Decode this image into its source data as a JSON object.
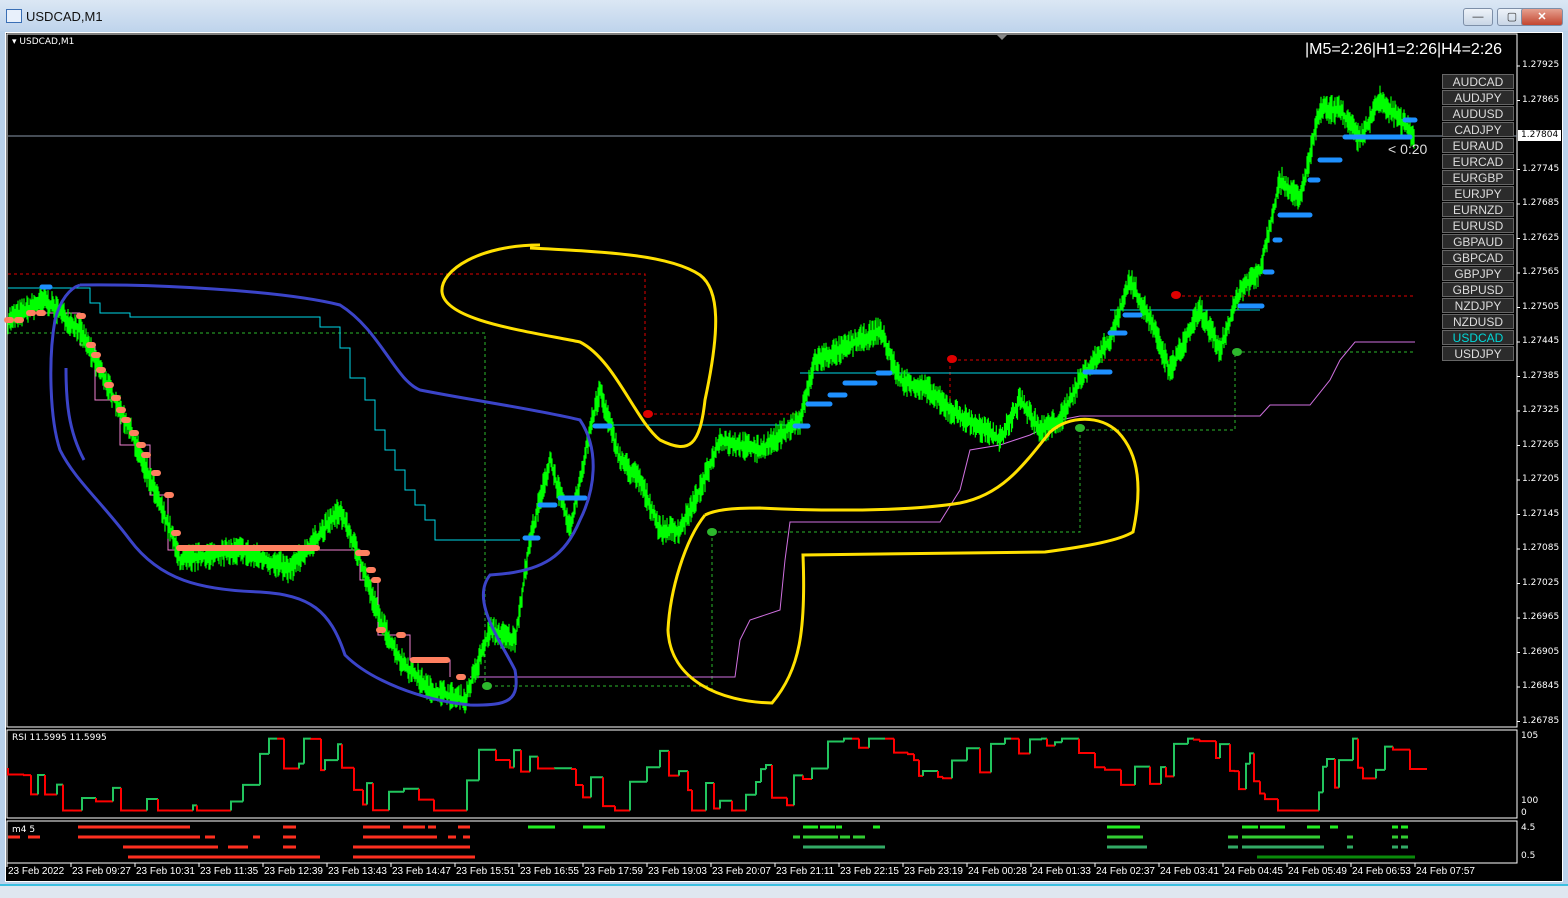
{
  "window": {
    "title": "USDCAD,M1",
    "buttons": {
      "minimize": "—",
      "restore": "▢",
      "close": "✕"
    }
  },
  "chart": {
    "label": "USDCAD,M1",
    "timer_text": "|M5=2:26|H1=2:26|H4=2:26",
    "bar_countdown": "< 0:20",
    "current_price": "1.27804"
  },
  "symbols": [
    "AUDCAD",
    "AUDJPY",
    "AUDUSD",
    "CADJPY",
    "EURAUD",
    "EURCAD",
    "EURGBP",
    "EURJPY",
    "EURNZD",
    "EURUSD",
    "GBPAUD",
    "GBPCAD",
    "GBPJPY",
    "GBPUSD",
    "NZDJPY",
    "NZDUSD",
    "USDCAD",
    "USDJPY"
  ],
  "active_symbol": "USDCAD",
  "rsi": {
    "label": "RSI 11.5995 11.5995",
    "axis": [
      "105",
      "0",
      "100"
    ]
  },
  "m4": {
    "label": "m4 5",
    "axis": [
      "4.5",
      "0.5"
    ]
  },
  "colors": {
    "price": "#00ff00",
    "bull": "#22c55e",
    "bear": "#ff0000",
    "active_symbol": "#00d8d8",
    "annotation_yellow": "#ffe000",
    "annotation_blue": "#3b44c8"
  },
  "chart_data": {
    "type": "line",
    "symbol": "USDCAD",
    "timeframe": "M1",
    "y_ticks": [
      "1.27925",
      "1.27865",
      "1.27745",
      "1.27685",
      "1.27625",
      "1.27565",
      "1.27505",
      "1.27445",
      "1.27385",
      "1.27325",
      "1.27265",
      "1.27205",
      "1.27145",
      "1.27085",
      "1.27025",
      "1.26965",
      "1.26905",
      "1.26845",
      "1.26785"
    ],
    "ylim": [
      1.26785,
      1.27925
    ],
    "x_ticks": [
      "23 Feb 2022",
      "23 Feb 09:27",
      "23 Feb 10:31",
      "23 Feb 11:35",
      "23 Feb 12:39",
      "23 Feb 13:43",
      "23 Feb 14:47",
      "23 Feb 15:51",
      "23 Feb 16:55",
      "23 Feb 17:59",
      "23 Feb 19:03",
      "23 Feb 20:07",
      "23 Feb 21:11",
      "23 Feb 22:15",
      "23 Feb 23:19",
      "24 Feb 00:28",
      "24 Feb 01:33",
      "24 Feb 02:37",
      "24 Feb 03:41",
      "24 Feb 04:45",
      "24 Feb 05:49",
      "24 Feb 06:53",
      "24 Feb 07:57"
    ],
    "points": [
      [
        "23 08:24",
        1.27483
      ],
      [
        "23 09:01",
        1.27518
      ],
      [
        "23 09:36",
        1.27466
      ],
      [
        "23 09:56",
        1.27396
      ],
      [
        "23 10:26",
        1.27292
      ],
      [
        "23 11:06",
        1.27118
      ],
      [
        "23 11:16",
        1.27066
      ],
      [
        "23 12:16",
        1.27083
      ],
      [
        "23 13:06",
        1.27049
      ],
      [
        "23 13:56",
        1.27153
      ],
      [
        "23 14:16",
        1.27066
      ],
      [
        "23 14:36",
        1.26962
      ],
      [
        "23 14:56",
        1.26892
      ],
      [
        "23 15:26",
        1.2684
      ],
      [
        "23 16:01",
        1.26822
      ],
      [
        "23 16:26",
        1.26944
      ],
      [
        "23 16:51",
        1.26927
      ],
      [
        "23 17:06",
        1.27101
      ],
      [
        "23 17:26",
        1.2724
      ],
      [
        "23 17:46",
        1.27118
      ],
      [
        "23 18:06",
        1.27292
      ],
      [
        "23 18:16",
        1.27362
      ],
      [
        "23 18:36",
        1.2724
      ],
      [
        "23 18:56",
        1.27205
      ],
      [
        "23 19:16",
        1.27118
      ],
      [
        "23 19:36",
        1.27118
      ],
      [
        "23 19:56",
        1.27188
      ],
      [
        "23 20:16",
        1.27275
      ],
      [
        "23 20:56",
        1.27257
      ],
      [
        "23 21:36",
        1.27309
      ],
      [
        "23 21:51",
        1.27414
      ],
      [
        "23 22:16",
        1.27431
      ],
      [
        "23 22:56",
        1.27466
      ],
      [
        "23 23:16",
        1.27379
      ],
      [
        "23 23:46",
        1.27362
      ],
      [
        "24 00:10",
        1.27327
      ],
      [
        "24 01:02",
        1.27275
      ],
      [
        "24 01:22",
        1.27344
      ],
      [
        "24 01:42",
        1.27292
      ],
      [
        "24 02:02",
        1.27309
      ],
      [
        "24 02:22",
        1.27379
      ],
      [
        "24 02:52",
        1.27449
      ],
      [
        "24 03:12",
        1.27553
      ],
      [
        "24 03:32",
        1.27484
      ],
      [
        "24 03:52",
        1.27396
      ],
      [
        "24 04:22",
        1.27501
      ],
      [
        "24 04:42",
        1.27431
      ],
      [
        "24 05:02",
        1.27535
      ],
      [
        "24 05:22",
        1.2757
      ],
      [
        "24 05:42",
        1.27727
      ],
      [
        "24 06:02",
        1.27692
      ],
      [
        "24 06:22",
        1.27849
      ],
      [
        "24 06:42",
        1.27849
      ],
      [
        "24 07:02",
        1.27796
      ],
      [
        "24 07:22",
        1.27866
      ],
      [
        "24 07:42",
        1.27831
      ],
      [
        "24 07:57",
        1.27804
      ]
    ],
    "grid": false
  }
}
